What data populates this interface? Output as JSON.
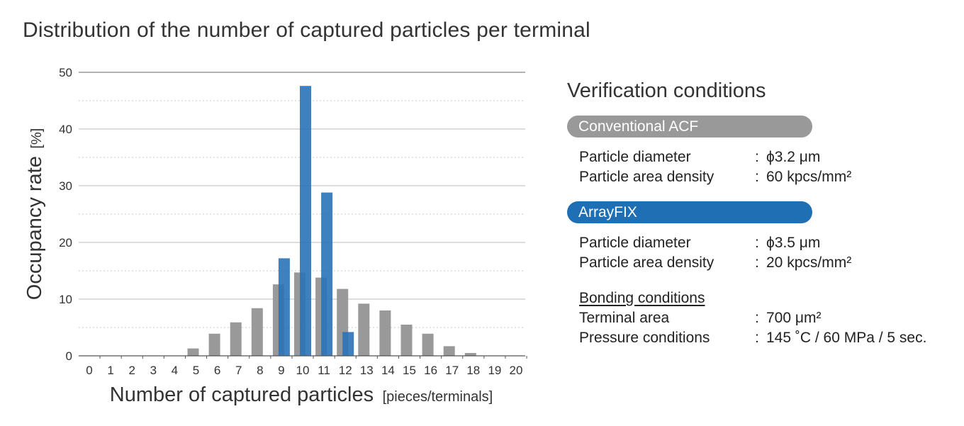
{
  "title": "Distribution of the number of captured particles per terminal",
  "chart_data": {
    "type": "bar",
    "xlabel": "Number of captured particles",
    "xlabel_unit": "[pieces/terminals]",
    "ylabel": "Occupancy rate",
    "ylabel_unit": "[%]",
    "ylim": [
      0,
      50
    ],
    "yticks": [
      "0",
      "10",
      "20",
      "30",
      "40",
      "50"
    ],
    "categories": [
      "0",
      "1",
      "2",
      "3",
      "4",
      "5",
      "6",
      "7",
      "8",
      "9",
      "10",
      "11",
      "12",
      "13",
      "14",
      "15",
      "16",
      "17",
      "18",
      "19",
      "20"
    ],
    "series": [
      {
        "name": "Conventional ACF",
        "color": "#999999",
        "values": [
          0,
          0,
          0,
          0,
          0,
          1.3,
          3.9,
          5.9,
          8.4,
          12.6,
          14.7,
          13.8,
          11.8,
          9.2,
          8.0,
          5.5,
          3.9,
          1.7,
          0.5,
          0,
          0
        ]
      },
      {
        "name": "ArrayFIX",
        "color": "#2a73b8",
        "values": [
          0,
          0,
          0,
          0,
          0,
          0,
          0,
          0,
          0,
          17.2,
          47.6,
          28.8,
          4.2,
          0,
          0,
          0,
          0,
          0,
          0,
          0,
          0
        ]
      }
    ],
    "grid": true,
    "legend": "none"
  },
  "panel": {
    "title": "Verification conditions",
    "conventional": {
      "label": "Conventional ACF",
      "rows": [
        {
          "key": "Particle diameter",
          "colon": ":",
          "value": "ϕ3.2 μm"
        },
        {
          "key": "Particle area density",
          "colon": ":",
          "value": "60 kpcs/mm²"
        }
      ]
    },
    "arrayfix": {
      "label": "ArrayFIX",
      "rows": [
        {
          "key": "Particle diameter",
          "colon": ":",
          "value": "ϕ3.5 μm"
        },
        {
          "key": "Particle area density",
          "colon": ":",
          "value": "20 kpcs/mm²"
        }
      ]
    },
    "bonding": {
      "label": "Bonding  conditions",
      "rows": [
        {
          "key": "Terminal area",
          "colon": ":",
          "value": "700 μm²"
        },
        {
          "key": "Pressure conditions",
          "colon": ":",
          "value": "145 ˚C / 60 MPa / 5 sec."
        }
      ]
    }
  }
}
